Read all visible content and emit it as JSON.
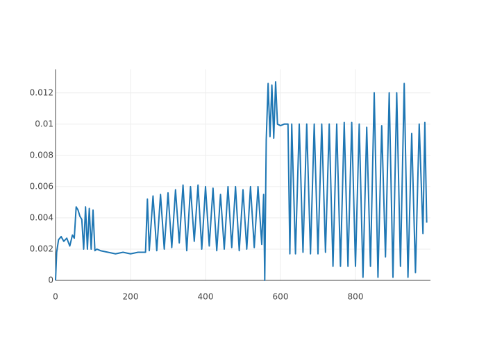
{
  "chart_data": {
    "type": "line",
    "color": "#1f77b4",
    "x": [
      0,
      3,
      8,
      15,
      22,
      30,
      38,
      45,
      50,
      55,
      60,
      65,
      70,
      75,
      80,
      85,
      90,
      95,
      100,
      105,
      110,
      120,
      140,
      160,
      180,
      200,
      220,
      240,
      245,
      250,
      260,
      270,
      280,
      290,
      300,
      310,
      320,
      330,
      340,
      350,
      360,
      370,
      380,
      390,
      400,
      410,
      420,
      430,
      440,
      450,
      460,
      470,
      480,
      490,
      500,
      510,
      520,
      530,
      540,
      550,
      555,
      558,
      562,
      567,
      572,
      577,
      582,
      587,
      592,
      600,
      610,
      620,
      625,
      630,
      640,
      650,
      660,
      670,
      680,
      690,
      700,
      710,
      720,
      730,
      740,
      750,
      760,
      770,
      780,
      790,
      800,
      810,
      820,
      830,
      840,
      850,
      860,
      870,
      880,
      890,
      900,
      910,
      920,
      930,
      940,
      950,
      960,
      970,
      980,
      985,
      990
    ],
    "values": [
      0,
      0.0018,
      0.0026,
      0.0028,
      0.0025,
      0.0027,
      0.0022,
      0.0029,
      0.0027,
      0.0047,
      0.0045,
      0.0041,
      0.0039,
      0.002,
      0.0047,
      0.002,
      0.0046,
      0.002,
      0.0045,
      0.0019,
      0.002,
      0.0019,
      0.0018,
      0.0017,
      0.0018,
      0.0017,
      0.0018,
      0.0018,
      0.0052,
      0.0019,
      0.0054,
      0.0019,
      0.0055,
      0.002,
      0.0056,
      0.0021,
      0.0058,
      0.0024,
      0.0061,
      0.0019,
      0.006,
      0.0025,
      0.0061,
      0.002,
      0.006,
      0.0022,
      0.0059,
      0.0019,
      0.0055,
      0.002,
      0.006,
      0.0021,
      0.006,
      0.0019,
      0.0058,
      0.002,
      0.006,
      0.0021,
      0.006,
      0.0023,
      0.0055,
      0,
      0.009,
      0.0126,
      0.0092,
      0.0125,
      0.0091,
      0.0127,
      0.01,
      0.0099,
      0.01,
      0.01,
      0.0017,
      0.01,
      0.0017,
      0.01,
      0.0018,
      0.01,
      0.0017,
      0.01,
      0.0017,
      0.01,
      0.0018,
      0.01,
      0.0009,
      0.01,
      0.0009,
      0.0101,
      0.0009,
      0.0101,
      0.0009,
      0.01,
      0.0002,
      0.0098,
      0.0009,
      0.012,
      0.0002,
      0.0099,
      0.0015,
      0.012,
      0.0002,
      0.012,
      0.0009,
      0.0126,
      0.0002,
      0.0094,
      0.0005,
      0.01,
      0.003,
      0.0101,
      0.0037
    ],
    "xlim": [
      0,
      1000
    ],
    "ylim": [
      0,
      0.0135
    ],
    "xticks": [
      0,
      200,
      400,
      600,
      800
    ],
    "yticks": [
      0,
      0.002,
      0.004,
      0.006,
      0.008,
      0.01,
      0.012
    ],
    "grid": true
  }
}
